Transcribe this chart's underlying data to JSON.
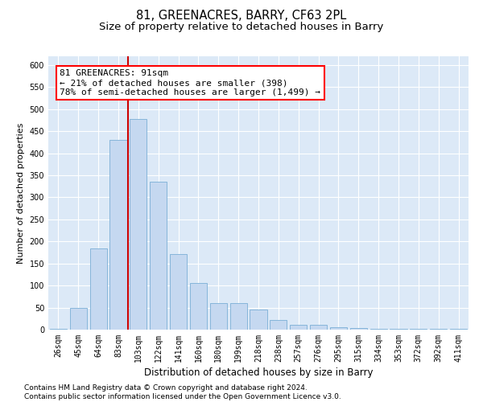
{
  "title_line1": "81, GREENACRES, BARRY, CF63 2PL",
  "title_line2": "Size of property relative to detached houses in Barry",
  "xlabel": "Distribution of detached houses by size in Barry",
  "ylabel": "Number of detached properties",
  "categories": [
    "26sqm",
    "45sqm",
    "64sqm",
    "83sqm",
    "103sqm",
    "122sqm",
    "141sqm",
    "160sqm",
    "180sqm",
    "199sqm",
    "218sqm",
    "238sqm",
    "257sqm",
    "276sqm",
    "295sqm",
    "315sqm",
    "334sqm",
    "353sqm",
    "372sqm",
    "392sqm",
    "411sqm"
  ],
  "values": [
    2,
    50,
    185,
    430,
    478,
    335,
    172,
    106,
    60,
    60,
    45,
    22,
    11,
    11,
    5,
    4,
    2,
    1,
    1,
    1,
    2
  ],
  "bar_color": "#c5d8f0",
  "bar_edge_color": "#7aaed6",
  "bar_width": 0.85,
  "vline_x_index": 3.5,
  "vline_color": "#cc0000",
  "annotation_line1": "81 GREENACRES: 91sqm",
  "annotation_line2": "← 21% of detached houses are smaller (398)",
  "annotation_line3": "78% of semi-detached houses are larger (1,499) →",
  "ylim_max": 620,
  "yticks": [
    0,
    50,
    100,
    150,
    200,
    250,
    300,
    350,
    400,
    450,
    500,
    550,
    600
  ],
  "grid_color": "#ffffff",
  "bg_color": "#dce9f7",
  "footer_text": "Contains HM Land Registry data © Crown copyright and database right 2024.\nContains public sector information licensed under the Open Government Licence v3.0.",
  "title_fontsize": 10.5,
  "subtitle_fontsize": 9.5,
  "xlabel_fontsize": 8.5,
  "ylabel_fontsize": 8,
  "tick_fontsize": 7,
  "annotation_fontsize": 8,
  "footer_fontsize": 6.5
}
